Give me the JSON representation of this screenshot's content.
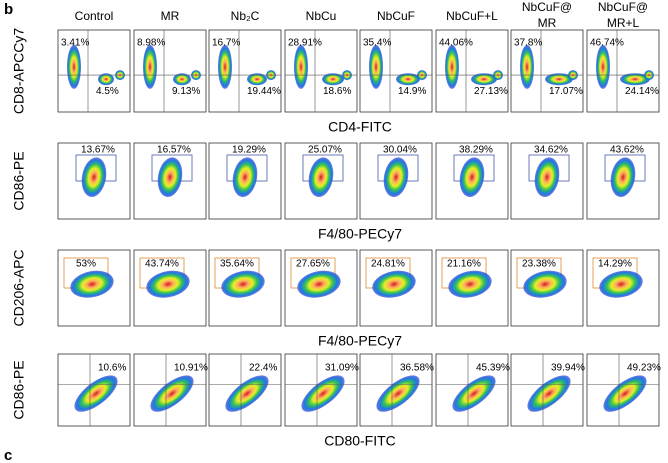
{
  "panel_label": "b",
  "next_panel_label": "c",
  "columns": [
    [
      "Control"
    ],
    [
      "MR"
    ],
    [
      "Nb₂C"
    ],
    [
      "NbCu"
    ],
    [
      "NbCuF"
    ],
    [
      "NbCuF+L"
    ],
    [
      "NbCuF@",
      "MR"
    ],
    [
      "NbCuF@",
      "MR+L"
    ]
  ],
  "rows": [
    {
      "y_label": "CD8-APCCy7",
      "x_label": "CD4-FITC",
      "upper": [
        "3.41%",
        "8.98%",
        "16.7%",
        "28.91%",
        "35.4%",
        "44.06%",
        "37.8%",
        "46.74%"
      ],
      "lower": [
        "4.5%",
        "9.13%",
        "19.44%",
        "18.6%",
        "14.9%",
        "27.13%",
        "17.07%",
        "24.14%"
      ]
    },
    {
      "y_label": "CD86-PE",
      "x_label": "F4/80-PECy7",
      "upper": [
        "13.67%",
        "16.57%",
        "19.29%",
        "25.07%",
        "30.04%",
        "38.29%",
        "34.62%",
        "43.62%"
      ]
    },
    {
      "y_label": "CD206-APC",
      "x_label": "F4/80-PECy7",
      "upper": [
        "53%",
        "43.74%",
        "35.64%",
        "27.65%",
        "24.81%",
        "21.16%",
        "23.38%",
        "14.29%"
      ]
    },
    {
      "y_label": "CD86-PE",
      "x_label": "CD80-FITC",
      "upper": [
        "10.6%",
        "10.91%",
        "22.4%",
        "31.09%",
        "36.58%",
        "45.39%",
        "39.94%",
        "49.23%"
      ]
    }
  ]
}
